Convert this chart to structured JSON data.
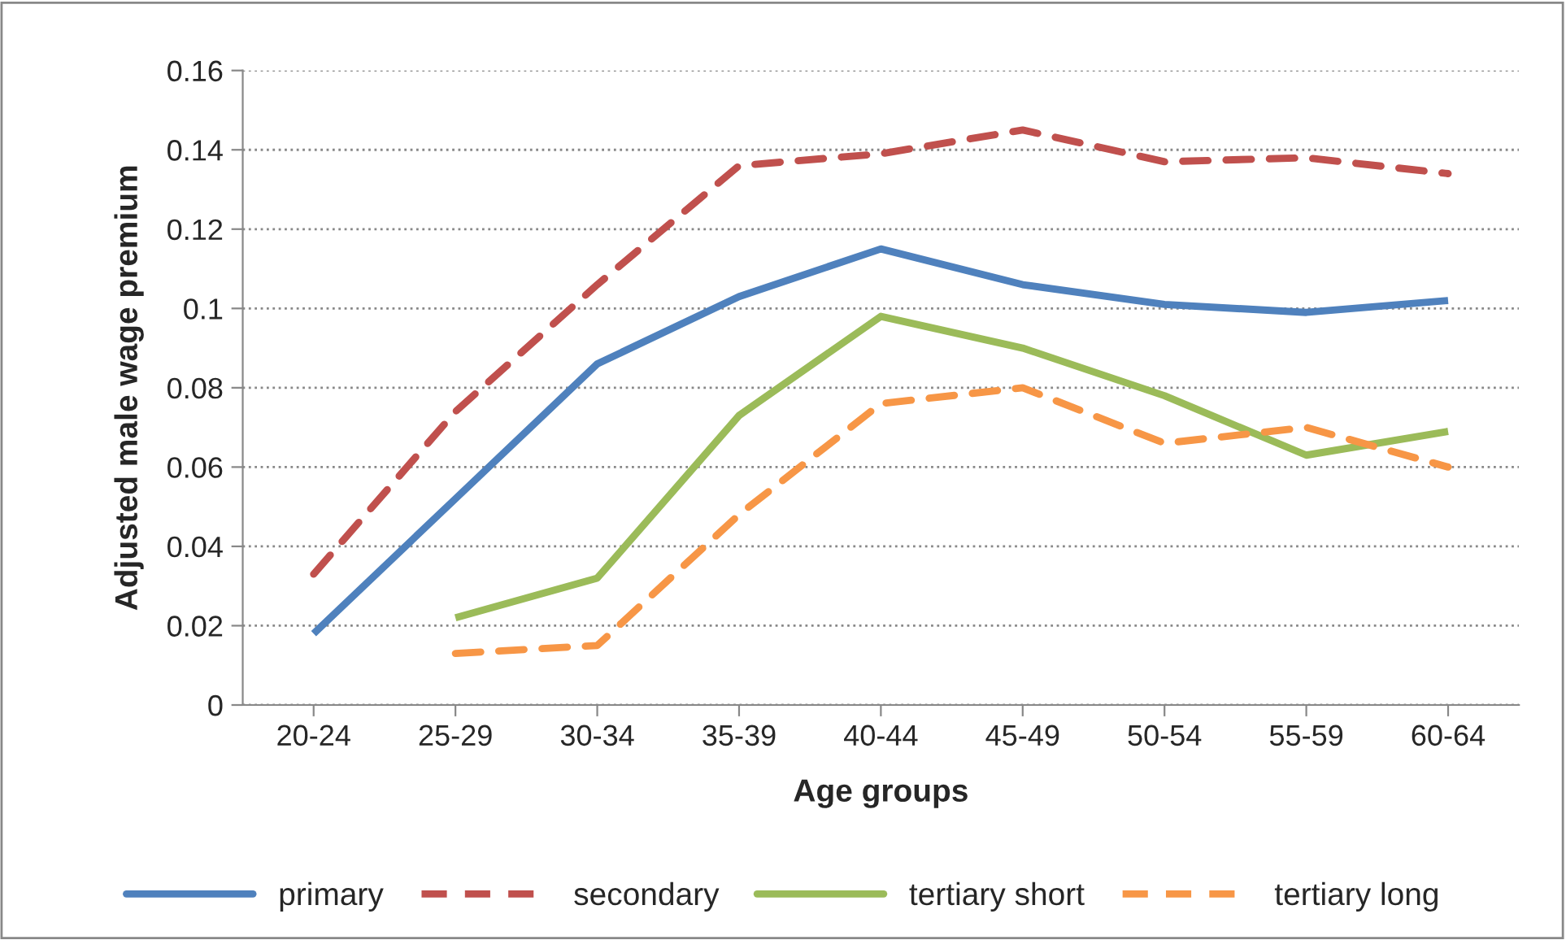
{
  "chart_data": {
    "type": "line",
    "xlabel": "Age groups",
    "ylabel": "Adjusted male wage premium",
    "categories": [
      "20-24",
      "25-29",
      "30-34",
      "35-39",
      "40-44",
      "45-49",
      "50-54",
      "55-59",
      "60-64"
    ],
    "series": [
      {
        "name": "primary",
        "color": "#4f81bd",
        "line_style": "solid",
        "values": [
          0.018,
          0.052,
          0.086,
          0.103,
          0.115,
          0.106,
          0.101,
          0.099,
          0.102
        ]
      },
      {
        "name": "secondary",
        "color": "#c0504d",
        "line_style": "dashed",
        "values": [
          0.033,
          0.074,
          0.106,
          0.136,
          0.139,
          0.145,
          0.137,
          0.138,
          0.134
        ]
      },
      {
        "name": "tertiary short",
        "color": "#9bbb59",
        "line_style": "solid",
        "values": [
          null,
          0.022,
          0.032,
          0.073,
          0.098,
          0.09,
          0.078,
          0.063,
          0.069
        ]
      },
      {
        "name": "tertiary long",
        "color": "#f79646",
        "line_style": "dashed",
        "values": [
          null,
          0.013,
          0.015,
          0.048,
          0.076,
          0.08,
          0.066,
          0.07,
          0.06
        ]
      }
    ],
    "ylim": [
      0,
      0.16
    ],
    "yticks": [
      0,
      0.02,
      0.04,
      0.06,
      0.08,
      0.1,
      0.12,
      0.14,
      0.16
    ],
    "grid": "y",
    "legend": "bottom",
    "marker": "none"
  }
}
